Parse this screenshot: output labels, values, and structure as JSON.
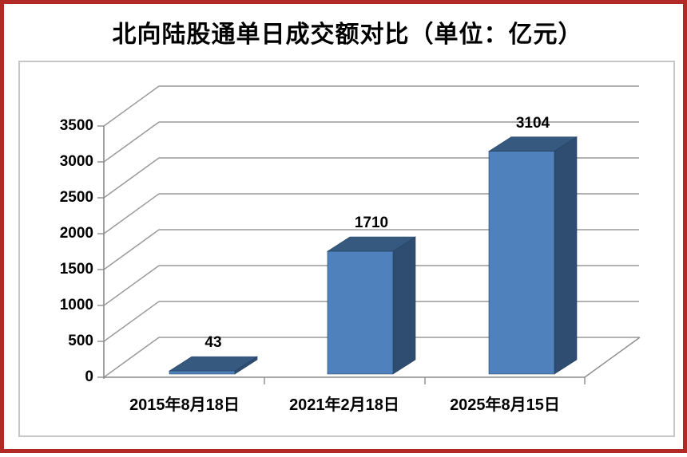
{
  "page": {
    "frame_color": "#b12a26",
    "background": "#ffffff"
  },
  "chart_data": {
    "type": "bar",
    "style": "3d-column",
    "title": "北向陆股通单日成交额对比（单位：亿元）",
    "unit": "亿元",
    "categories": [
      "2015年8月18日",
      "2021年2月18日",
      "2025年8月15日"
    ],
    "values": [
      43,
      1710,
      3104
    ],
    "value_labels": [
      "43",
      "1710",
      "3104"
    ],
    "xlabel": "",
    "ylabel": "",
    "ylim": [
      0,
      3500
    ],
    "yticks": [
      0,
      500,
      1000,
      1500,
      2000,
      2500,
      3000,
      3500
    ],
    "grid": true,
    "legend": false,
    "colors": {
      "bar_front": "#4f81bd",
      "bar_top": "#35597f",
      "bar_side": "#2e4d71",
      "bar_edge": "#244061",
      "gridline": "#989898",
      "axis": "#8c8c8c",
      "plot_border": "#c6c6c6",
      "text": "#000000"
    }
  }
}
